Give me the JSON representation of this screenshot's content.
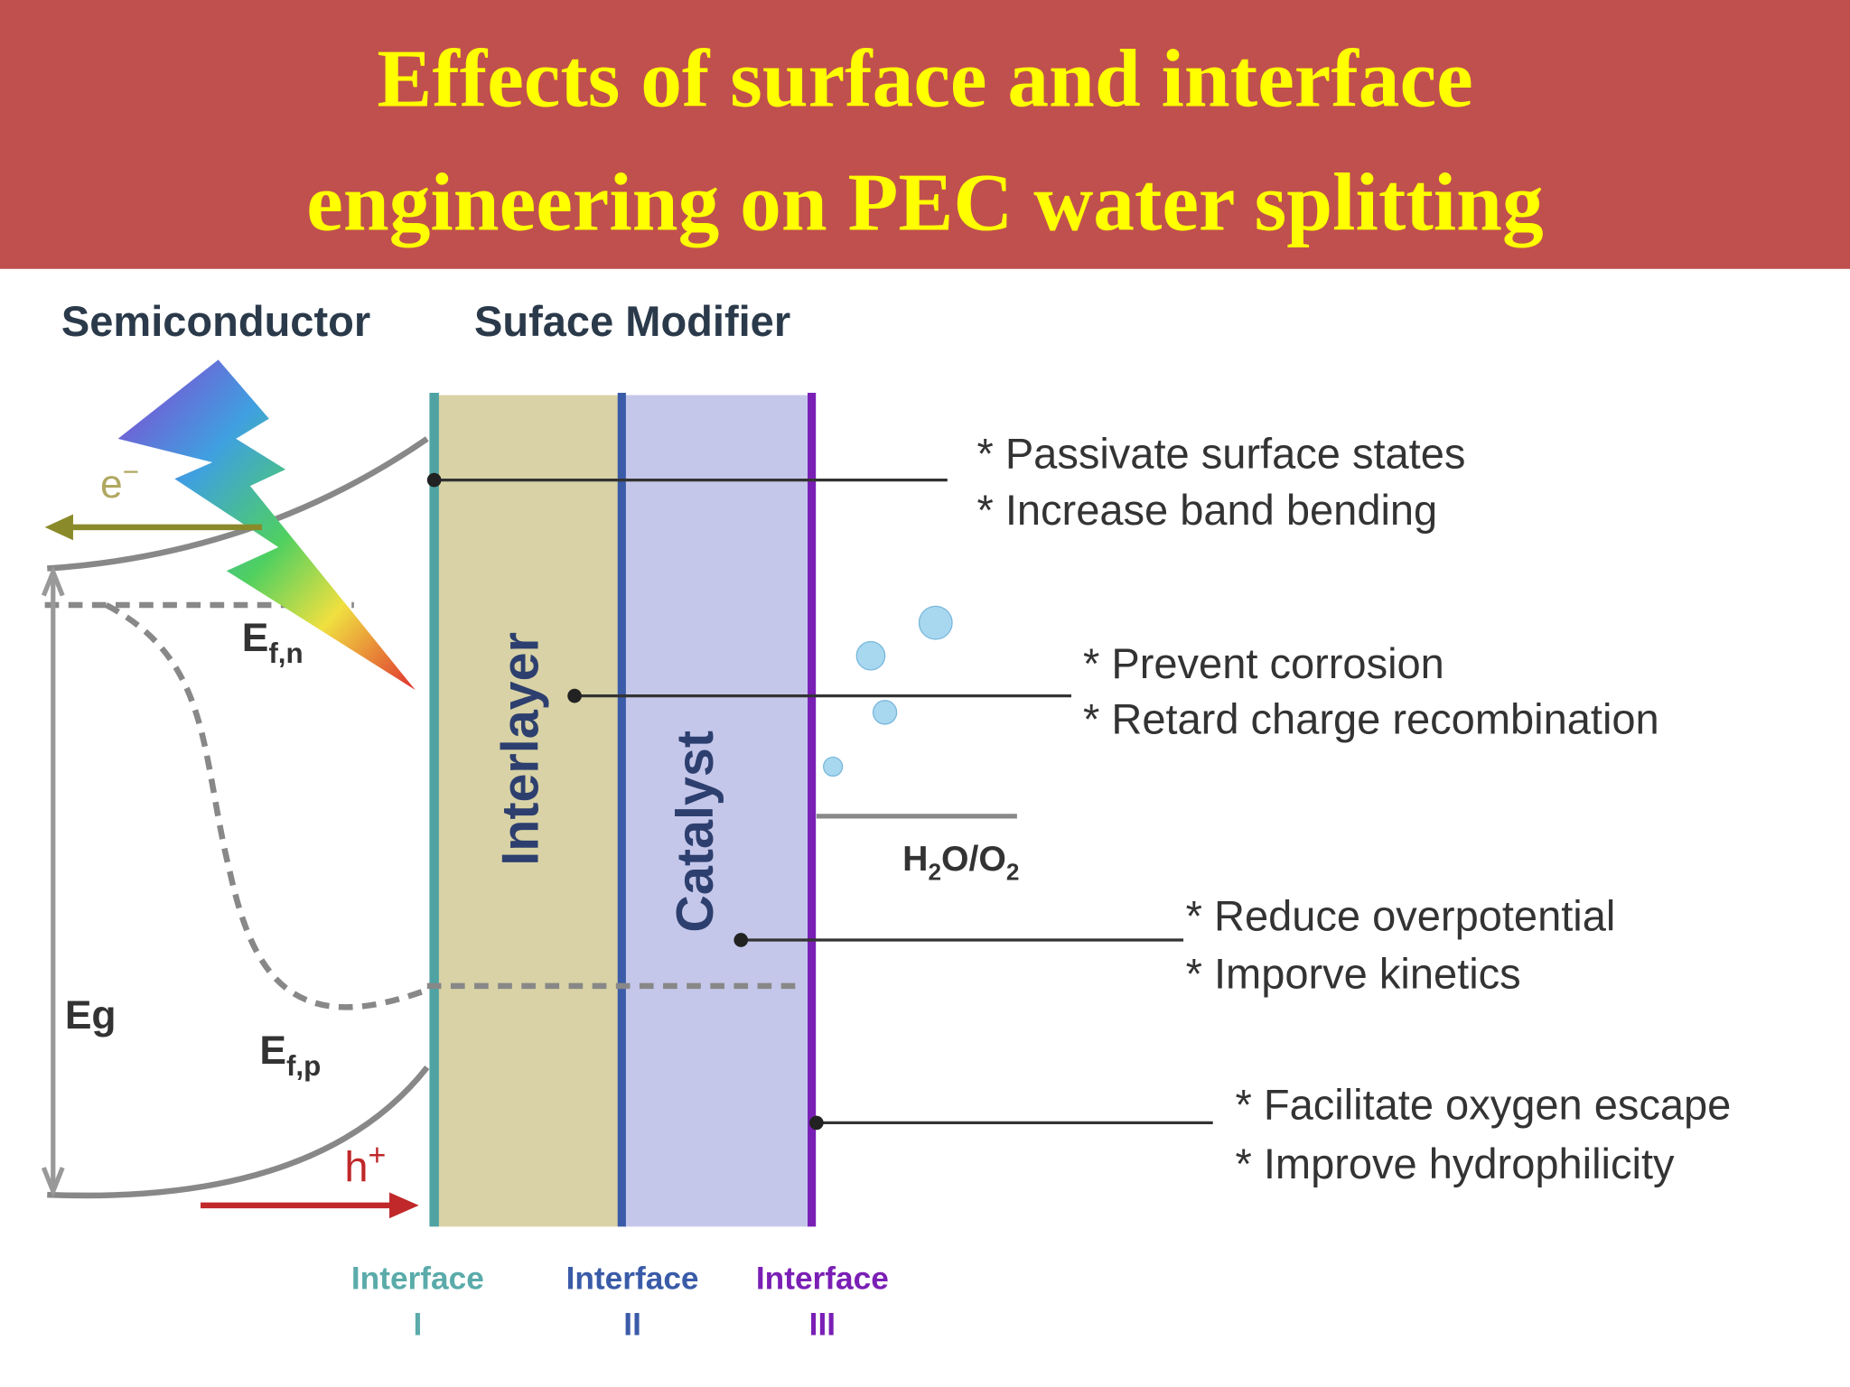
{
  "header": {
    "title": [
      "Effects of surface and interface",
      "engineering on PEC water splitting"
    ]
  },
  "labels": {
    "semiconductor": "Semiconductor",
    "surface_modifier": "Suface Modifier",
    "interlayer": "Interlayer",
    "catalyst": "Catalyst",
    "eg": "Eg",
    "electron": {
      "symbol": "e",
      "charge": "−"
    },
    "hole": {
      "symbol": "h",
      "charge": "+"
    },
    "efn": {
      "symbol": "E",
      "sub": "f,n"
    },
    "efp": {
      "symbol": "E",
      "sub": "f,p"
    },
    "redox": [
      "H",
      "2",
      "O/O",
      "2"
    ]
  },
  "effects": [
    [
      "* Passivate surface states",
      "* Increase band bending"
    ],
    [
      "* Prevent corrosion",
      "* Retard charge recombination"
    ],
    [
      "* Reduce overpotential",
      "* Imporve kinetics"
    ],
    [
      "* Facilitate oxygen escape",
      "* Improve hydrophilicity"
    ]
  ],
  "interfaces": [
    {
      "name": "Interface",
      "numeral": "I"
    },
    {
      "name": "Interface",
      "numeral": "II"
    },
    {
      "name": "Interface",
      "numeral": "III"
    }
  ]
}
